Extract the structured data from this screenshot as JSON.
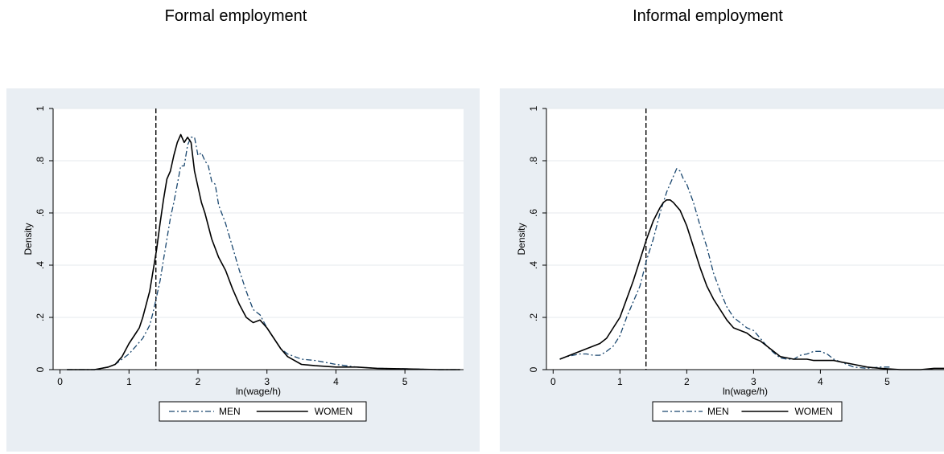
{
  "colors": {
    "panel_bg": "#e9eef3",
    "plot_bg": "#ffffff",
    "grid": "#e4e9ee",
    "men": "#1a476f",
    "women": "#000000",
    "cutoff": "#000000"
  },
  "chart_data": [
    {
      "type": "line",
      "title": "Formal employment",
      "xlabel": "ln(wage/h)",
      "ylabel": "Density",
      "xlim": [
        -0.1,
        5.85
      ],
      "ylim": [
        0,
        1.0
      ],
      "xticks": [
        0,
        1,
        2,
        3,
        4,
        5
      ],
      "xtick_labels": [
        "0",
        "1",
        "2",
        "3",
        "4",
        "5"
      ],
      "yticks": [
        0,
        0.2,
        0.4,
        0.6,
        0.8,
        1.0
      ],
      "ytick_labels": [
        "0",
        ".2",
        ".4",
        ".6",
        ".8",
        "1"
      ],
      "grid": true,
      "vline": 1.39,
      "legend_position": "bottom",
      "series": [
        {
          "name": "MEN",
          "style": "dash-dot",
          "x": [
            0.1,
            0.3,
            0.5,
            0.6,
            0.7,
            0.8,
            0.9,
            1.0,
            1.1,
            1.2,
            1.3,
            1.35,
            1.4,
            1.45,
            1.5,
            1.55,
            1.6,
            1.65,
            1.7,
            1.75,
            1.8,
            1.85,
            1.9,
            1.95,
            2.0,
            2.05,
            2.1,
            2.15,
            2.2,
            2.25,
            2.3,
            2.4,
            2.5,
            2.6,
            2.7,
            2.8,
            2.9,
            3.0,
            3.1,
            3.2,
            3.3,
            3.5,
            3.7,
            4.0,
            4.3,
            4.6,
            5.0,
            5.5,
            5.8
          ],
          "y": [
            0.0,
            0.0,
            0.0,
            0.005,
            0.01,
            0.02,
            0.04,
            0.06,
            0.09,
            0.12,
            0.17,
            0.22,
            0.28,
            0.34,
            0.42,
            0.5,
            0.58,
            0.64,
            0.71,
            0.78,
            0.78,
            0.86,
            0.89,
            0.89,
            0.82,
            0.83,
            0.8,
            0.78,
            0.72,
            0.71,
            0.63,
            0.56,
            0.47,
            0.38,
            0.3,
            0.23,
            0.21,
            0.16,
            0.12,
            0.08,
            0.06,
            0.04,
            0.035,
            0.02,
            0.01,
            0.005,
            0.003,
            0.0,
            0.0
          ]
        },
        {
          "name": "WOMEN",
          "style": "solid",
          "x": [
            0.1,
            0.3,
            0.5,
            0.6,
            0.7,
            0.8,
            0.9,
            1.0,
            1.1,
            1.15,
            1.2,
            1.3,
            1.35,
            1.4,
            1.45,
            1.5,
            1.55,
            1.6,
            1.65,
            1.7,
            1.75,
            1.8,
            1.85,
            1.9,
            1.95,
            2.0,
            2.05,
            2.1,
            2.2,
            2.3,
            2.4,
            2.5,
            2.6,
            2.7,
            2.8,
            2.9,
            3.0,
            3.1,
            3.2,
            3.3,
            3.5,
            3.7,
            4.0,
            4.3,
            4.6,
            5.0,
            5.5,
            5.8
          ],
          "y": [
            0.0,
            0.0,
            0.0,
            0.005,
            0.01,
            0.02,
            0.05,
            0.1,
            0.14,
            0.16,
            0.2,
            0.3,
            0.38,
            0.46,
            0.56,
            0.65,
            0.73,
            0.76,
            0.82,
            0.87,
            0.9,
            0.87,
            0.89,
            0.87,
            0.76,
            0.7,
            0.64,
            0.6,
            0.5,
            0.43,
            0.38,
            0.31,
            0.25,
            0.2,
            0.18,
            0.19,
            0.16,
            0.12,
            0.08,
            0.05,
            0.02,
            0.015,
            0.01,
            0.01,
            0.005,
            0.003,
            0.0,
            0.0
          ]
        }
      ]
    },
    {
      "type": "line",
      "title": "Informal employment",
      "xlabel": "ln(wage/h)",
      "ylabel": "Density",
      "xlim": [
        -0.1,
        5.85
      ],
      "ylim": [
        0,
        1.0
      ],
      "xticks": [
        0,
        1,
        2,
        3,
        4,
        5
      ],
      "xtick_labels": [
        "0",
        "1",
        "2",
        "3",
        "4",
        "5"
      ],
      "yticks": [
        0,
        0.2,
        0.4,
        0.6,
        0.8,
        1.0
      ],
      "ytick_labels": [
        "0",
        ".2",
        ".4",
        ".6",
        ".8",
        "1"
      ],
      "grid": true,
      "vline": 1.39,
      "legend_position": "bottom",
      "series": [
        {
          "name": "MEN",
          "style": "dash-dot",
          "x": [
            0.1,
            0.2,
            0.3,
            0.4,
            0.5,
            0.6,
            0.7,
            0.8,
            0.9,
            1.0,
            1.1,
            1.2,
            1.3,
            1.4,
            1.5,
            1.6,
            1.7,
            1.8,
            1.85,
            1.9,
            1.95,
            2.0,
            2.1,
            2.2,
            2.3,
            2.4,
            2.5,
            2.6,
            2.7,
            2.8,
            2.9,
            3.0,
            3.1,
            3.2,
            3.3,
            3.4,
            3.5,
            3.6,
            3.7,
            3.8,
            3.9,
            4.0,
            4.1,
            4.2,
            4.3,
            4.5,
            4.7,
            4.9,
            5.05
          ],
          "y": [
            0.04,
            0.05,
            0.055,
            0.06,
            0.06,
            0.055,
            0.055,
            0.07,
            0.09,
            0.13,
            0.2,
            0.26,
            0.32,
            0.42,
            0.5,
            0.6,
            0.68,
            0.74,
            0.77,
            0.76,
            0.73,
            0.71,
            0.64,
            0.55,
            0.47,
            0.37,
            0.3,
            0.24,
            0.2,
            0.18,
            0.16,
            0.15,
            0.12,
            0.09,
            0.065,
            0.045,
            0.04,
            0.04,
            0.055,
            0.06,
            0.07,
            0.07,
            0.06,
            0.04,
            0.03,
            0.01,
            0.005,
            0.01,
            0.01
          ]
        },
        {
          "name": "WOMEN",
          "style": "solid",
          "x": [
            0.1,
            0.2,
            0.3,
            0.4,
            0.5,
            0.6,
            0.7,
            0.8,
            0.9,
            1.0,
            1.1,
            1.2,
            1.3,
            1.4,
            1.5,
            1.6,
            1.65,
            1.7,
            1.75,
            1.8,
            1.9,
            2.0,
            2.1,
            2.2,
            2.3,
            2.4,
            2.5,
            2.6,
            2.7,
            2.8,
            2.9,
            3.0,
            3.1,
            3.2,
            3.3,
            3.4,
            3.5,
            3.6,
            3.7,
            3.8,
            3.9,
            4.0,
            4.1,
            4.2,
            4.3,
            4.5,
            4.7,
            4.9,
            5.2,
            5.5,
            5.7,
            5.85
          ],
          "y": [
            0.04,
            0.05,
            0.06,
            0.07,
            0.08,
            0.09,
            0.1,
            0.12,
            0.16,
            0.2,
            0.27,
            0.34,
            0.42,
            0.5,
            0.57,
            0.62,
            0.64,
            0.65,
            0.65,
            0.64,
            0.61,
            0.55,
            0.47,
            0.39,
            0.32,
            0.27,
            0.23,
            0.19,
            0.16,
            0.15,
            0.14,
            0.12,
            0.11,
            0.09,
            0.07,
            0.05,
            0.045,
            0.04,
            0.04,
            0.04,
            0.035,
            0.035,
            0.035,
            0.035,
            0.03,
            0.02,
            0.01,
            0.005,
            0.0,
            0.0,
            0.005,
            0.005
          ]
        }
      ]
    }
  ]
}
